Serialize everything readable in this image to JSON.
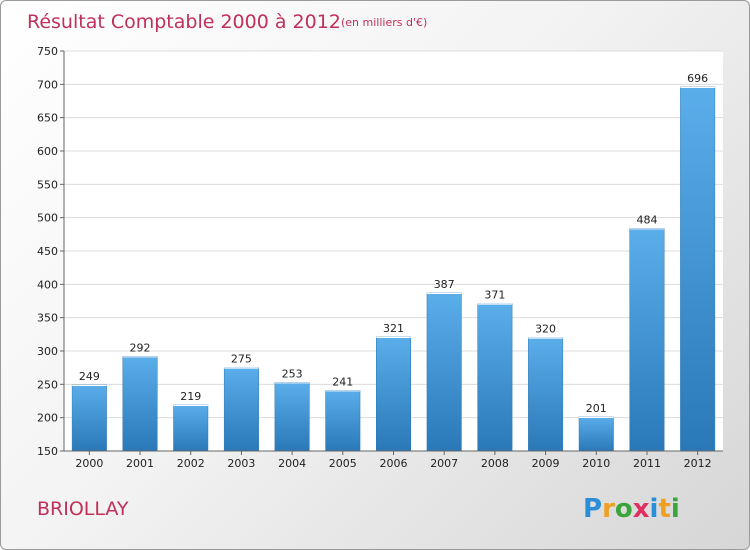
{
  "chart_data": {
    "type": "bar",
    "title": "Résultat Comptable 2000 à 2012",
    "subtitle": "(en milliers d'€)",
    "categories": [
      "2000",
      "2001",
      "2002",
      "2003",
      "2004",
      "2005",
      "2006",
      "2007",
      "2008",
      "2009",
      "2010",
      "2011",
      "2012"
    ],
    "values": [
      249,
      292,
      219,
      275,
      253,
      241,
      321,
      387,
      371,
      320,
      201,
      484,
      696
    ],
    "ylim": [
      150,
      750
    ],
    "yticks": [
      150,
      200,
      250,
      300,
      350,
      400,
      450,
      500,
      550,
      600,
      650,
      700,
      750
    ],
    "grid": true,
    "bar_color": "#4a9edb"
  },
  "place_name": "BRIOLLAY",
  "logo": {
    "letters": [
      "P",
      "r",
      "o",
      "x",
      "i",
      "t",
      "i"
    ],
    "colors": [
      "#2a8fd6",
      "#f0a020",
      "#3aa53a",
      "#e03060",
      "#2a8fd6",
      "#f0a020",
      "#3aa53a"
    ]
  }
}
